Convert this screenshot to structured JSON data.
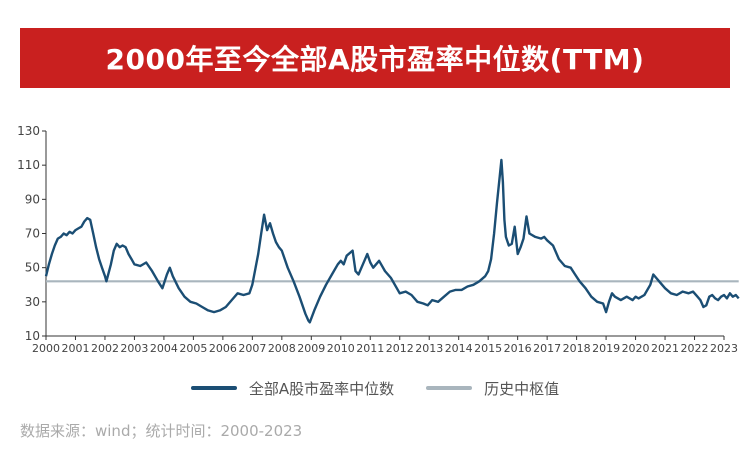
{
  "header": {
    "title": "2000年至今全部A股市盈率中位数(TTM)"
  },
  "source": {
    "text": "数据来源：wind；统计时间：2000-2023"
  },
  "colors": {
    "banner": "#c9201f",
    "series_main": "#1b4e74",
    "series_ref": "#a9b5bd",
    "axis_text": "#444444"
  },
  "chart_data": {
    "type": "line",
    "title": "2000年至今全部A股市盈率中位数(TTM)",
    "xlabel": "",
    "ylabel": "",
    "xlim": [
      2000,
      2023
    ],
    "ylim": [
      10,
      130
    ],
    "x_ticks": [
      "2000",
      "2001",
      "2002",
      "2003",
      "2004",
      "2005",
      "2006",
      "2007",
      "2008",
      "2009",
      "2010",
      "2011",
      "2012",
      "2013",
      "2014",
      "2015",
      "2016",
      "2017",
      "2018",
      "2019",
      "2020",
      "2021",
      "2022",
      "2023"
    ],
    "y_ticks": [
      10,
      30,
      50,
      70,
      90,
      110,
      130
    ],
    "grid": false,
    "legend_position": "bottom",
    "series": [
      {
        "name": "全部A股市盈率中位数",
        "color": "#1b4e74",
        "points": [
          [
            2000.0,
            45
          ],
          [
            2000.1,
            52
          ],
          [
            2000.2,
            58
          ],
          [
            2000.3,
            63
          ],
          [
            2000.4,
            67
          ],
          [
            2000.5,
            68
          ],
          [
            2000.6,
            70
          ],
          [
            2000.7,
            69
          ],
          [
            2000.8,
            71
          ],
          [
            2000.9,
            70
          ],
          [
            2001.0,
            72
          ],
          [
            2001.1,
            73
          ],
          [
            2001.2,
            74
          ],
          [
            2001.3,
            77
          ],
          [
            2001.4,
            79
          ],
          [
            2001.5,
            78
          ],
          [
            2001.6,
            70
          ],
          [
            2001.7,
            62
          ],
          [
            2001.8,
            55
          ],
          [
            2001.9,
            50
          ],
          [
            2002.0,
            45
          ],
          [
            2002.05,
            42
          ],
          [
            2002.2,
            52
          ],
          [
            2002.3,
            60
          ],
          [
            2002.4,
            64
          ],
          [
            2002.5,
            62
          ],
          [
            2002.6,
            63
          ],
          [
            2002.7,
            62
          ],
          [
            2002.8,
            58
          ],
          [
            2002.9,
            55
          ],
          [
            2003.0,
            52
          ],
          [
            2003.2,
            51
          ],
          [
            2003.4,
            53
          ],
          [
            2003.6,
            48
          ],
          [
            2003.8,
            42
          ],
          [
            2003.95,
            38
          ],
          [
            2004.1,
            46
          ],
          [
            2004.2,
            50
          ],
          [
            2004.3,
            45
          ],
          [
            2004.5,
            38
          ],
          [
            2004.7,
            33
          ],
          [
            2004.9,
            30
          ],
          [
            2005.1,
            29
          ],
          [
            2005.3,
            27
          ],
          [
            2005.5,
            25
          ],
          [
            2005.7,
            24
          ],
          [
            2005.9,
            25
          ],
          [
            2006.1,
            27
          ],
          [
            2006.3,
            31
          ],
          [
            2006.5,
            35
          ],
          [
            2006.7,
            34
          ],
          [
            2006.9,
            35
          ],
          [
            2007.0,
            40
          ],
          [
            2007.2,
            58
          ],
          [
            2007.3,
            70
          ],
          [
            2007.4,
            81
          ],
          [
            2007.5,
            72
          ],
          [
            2007.6,
            76
          ],
          [
            2007.7,
            70
          ],
          [
            2007.8,
            65
          ],
          [
            2007.9,
            62
          ],
          [
            2008.0,
            60
          ],
          [
            2008.2,
            50
          ],
          [
            2008.4,
            42
          ],
          [
            2008.6,
            33
          ],
          [
            2008.8,
            23
          ],
          [
            2008.9,
            19
          ],
          [
            2008.95,
            18
          ],
          [
            2009.1,
            25
          ],
          [
            2009.3,
            33
          ],
          [
            2009.5,
            40
          ],
          [
            2009.7,
            46
          ],
          [
            2009.9,
            52
          ],
          [
            2010.0,
            54
          ],
          [
            2010.1,
            52
          ],
          [
            2010.2,
            57
          ],
          [
            2010.4,
            60
          ],
          [
            2010.5,
            48
          ],
          [
            2010.6,
            46
          ],
          [
            2010.8,
            54
          ],
          [
            2010.9,
            58
          ],
          [
            2011.0,
            53
          ],
          [
            2011.1,
            50
          ],
          [
            2011.3,
            54
          ],
          [
            2011.5,
            48
          ],
          [
            2011.7,
            44
          ],
          [
            2011.9,
            38
          ],
          [
            2012.0,
            35
          ],
          [
            2012.2,
            36
          ],
          [
            2012.4,
            34
          ],
          [
            2012.6,
            30
          ],
          [
            2012.8,
            29
          ],
          [
            2012.95,
            28
          ],
          [
            2013.1,
            31
          ],
          [
            2013.3,
            30
          ],
          [
            2013.5,
            33
          ],
          [
            2013.7,
            36
          ],
          [
            2013.9,
            37
          ],
          [
            2014.1,
            37
          ],
          [
            2014.3,
            39
          ],
          [
            2014.5,
            40
          ],
          [
            2014.7,
            42
          ],
          [
            2014.9,
            45
          ],
          [
            2015.0,
            48
          ],
          [
            2015.1,
            55
          ],
          [
            2015.2,
            70
          ],
          [
            2015.3,
            88
          ],
          [
            2015.4,
            105
          ],
          [
            2015.45,
            113
          ],
          [
            2015.5,
            100
          ],
          [
            2015.55,
            78
          ],
          [
            2015.6,
            68
          ],
          [
            2015.7,
            63
          ],
          [
            2015.8,
            64
          ],
          [
            2015.9,
            74
          ],
          [
            2016.0,
            58
          ],
          [
            2016.1,
            62
          ],
          [
            2016.2,
            67
          ],
          [
            2016.3,
            80
          ],
          [
            2016.4,
            70
          ],
          [
            2016.6,
            68
          ],
          [
            2016.8,
            67
          ],
          [
            2016.9,
            68
          ],
          [
            2017.0,
            66
          ],
          [
            2017.2,
            63
          ],
          [
            2017.4,
            55
          ],
          [
            2017.6,
            51
          ],
          [
            2017.8,
            50
          ],
          [
            2017.95,
            46
          ],
          [
            2018.1,
            42
          ],
          [
            2018.3,
            38
          ],
          [
            2018.5,
            33
          ],
          [
            2018.7,
            30
          ],
          [
            2018.9,
            29
          ],
          [
            2019.0,
            24
          ],
          [
            2019.1,
            30
          ],
          [
            2019.2,
            35
          ],
          [
            2019.3,
            33
          ],
          [
            2019.5,
            31
          ],
          [
            2019.7,
            33
          ],
          [
            2019.9,
            31
          ],
          [
            2020.0,
            33
          ],
          [
            2020.1,
            32
          ],
          [
            2020.3,
            34
          ],
          [
            2020.5,
            40
          ],
          [
            2020.6,
            46
          ],
          [
            2020.7,
            44
          ],
          [
            2020.8,
            42
          ],
          [
            2020.9,
            40
          ],
          [
            2021.0,
            38
          ],
          [
            2021.2,
            35
          ],
          [
            2021.4,
            34
          ],
          [
            2021.6,
            36
          ],
          [
            2021.8,
            35
          ],
          [
            2021.95,
            36
          ],
          [
            2022.1,
            33
          ],
          [
            2022.2,
            31
          ],
          [
            2022.3,
            27
          ],
          [
            2022.4,
            28
          ],
          [
            2022.5,
            33
          ],
          [
            2022.6,
            34
          ],
          [
            2022.7,
            32
          ],
          [
            2022.8,
            31
          ],
          [
            2022.9,
            33
          ],
          [
            2023.0,
            34
          ],
          [
            2023.1,
            32
          ],
          [
            2023.2,
            35
          ],
          [
            2023.3,
            33
          ],
          [
            2023.4,
            34
          ],
          [
            2023.5,
            32
          ]
        ]
      },
      {
        "name": "历史中枢值",
        "color": "#a9b5bd",
        "points": [
          [
            2000.0,
            42
          ],
          [
            2023.5,
            42
          ]
        ]
      }
    ]
  }
}
